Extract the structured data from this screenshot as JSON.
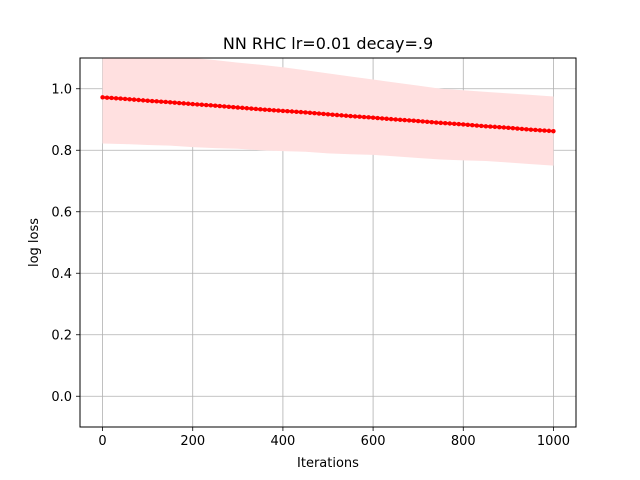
{
  "chart_data": {
    "type": "line",
    "title": "NN RHC lr=0.01 decay=.9",
    "xlabel": "Iterations",
    "ylabel": "log loss",
    "xlim": [
      -50,
      1050
    ],
    "ylim": [
      -0.1,
      1.1
    ],
    "xticks": [
      0,
      200,
      400,
      600,
      800,
      1000
    ],
    "xtick_labels": [
      "0",
      "200",
      "400",
      "600",
      "800",
      "1000"
    ],
    "yticks": [
      0.0,
      0.2,
      0.4,
      0.6,
      0.8,
      1.0
    ],
    "ytick_labels": [
      "0.0",
      "0.2",
      "0.4",
      "0.6",
      "0.8",
      "1.0"
    ],
    "grid": true,
    "series": [
      {
        "color": "#ff0000",
        "band_color": "#ffe0e0",
        "x": [
          0,
          50,
          100,
          150,
          200,
          250,
          300,
          350,
          400,
          450,
          500,
          550,
          600,
          650,
          700,
          750,
          800,
          850,
          900,
          950,
          1000
        ],
        "values": [
          0.972,
          0.967,
          0.961,
          0.956,
          0.95,
          0.945,
          0.939,
          0.933,
          0.928,
          0.923,
          0.917,
          0.911,
          0.906,
          0.9,
          0.895,
          0.889,
          0.884,
          0.878,
          0.873,
          0.867,
          0.862
        ],
        "band_upper": [
          1.12,
          1.115,
          1.11,
          1.105,
          1.1,
          1.093,
          1.085,
          1.078,
          1.07,
          1.06,
          1.05,
          1.04,
          1.03,
          1.02,
          1.01,
          1.0,
          0.995,
          0.99,
          0.985,
          0.98,
          0.975
        ],
        "band_lower": [
          0.822,
          0.82,
          0.817,
          0.815,
          0.81,
          0.807,
          0.805,
          0.8,
          0.797,
          0.795,
          0.79,
          0.787,
          0.785,
          0.78,
          0.775,
          0.77,
          0.767,
          0.765,
          0.76,
          0.755,
          0.75
        ]
      }
    ]
  }
}
